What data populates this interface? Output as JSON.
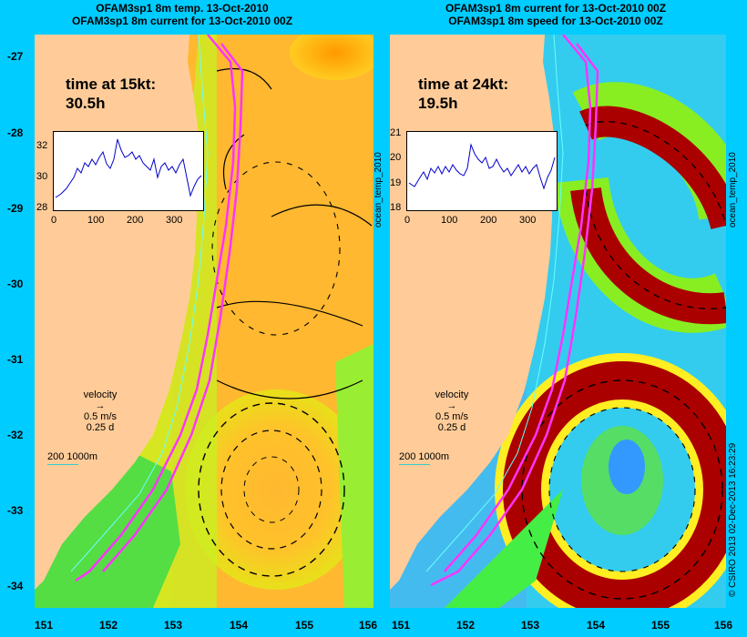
{
  "left_panel": {
    "title_line1": "OFAM3sp1 8m temp. 13-Oct-2010",
    "title_line2": "OFAM3sp1 8m current for 13-Oct-2010 00Z",
    "time_label": "time at 15kt:",
    "time_value": "30.5h",
    "inset": {
      "yticks": [
        "32",
        "30",
        "28"
      ],
      "xticks": [
        "0",
        "100",
        "200",
        "300"
      ]
    },
    "velocity": {
      "label": "velocity",
      "speed": "0.5 m/s",
      "duration": "0.25 d"
    },
    "depth_contours": "200  1000m",
    "side_label": "ocean_temp_2010"
  },
  "right_panel": {
    "title_line1": "OFAM3sp1 8m current for 13-Oct-2010 00Z",
    "title_line2": "OFAM3sp1 8m speed for 13-Oct-2010 00Z",
    "time_label": "time at 24kt:",
    "time_value": "19.5h",
    "inset": {
      "yticks": [
        "21",
        "20",
        "19",
        "18"
      ],
      "xticks": [
        "0",
        "100",
        "200",
        "300"
      ]
    },
    "velocity": {
      "label": "velocity",
      "speed": "0.5 m/s",
      "duration": "0.25 d"
    },
    "depth_contours": "200  1000m",
    "side_label": "ocean_temp_2010"
  },
  "axes": {
    "y_ticks": [
      "-27",
      "-28",
      "-29",
      "-30",
      "-31",
      "-32",
      "-33",
      "-34"
    ],
    "x_ticks": [
      "151",
      "152",
      "153",
      "154",
      "155",
      "156"
    ]
  },
  "footer": "© CSIRO 2013   02-Dec-2013 16:23:29",
  "colors": {
    "background": "#00ccff",
    "land": "#ffcc99",
    "route": "#ff33ff",
    "vectors": "#000000",
    "contour": "#66ffff"
  }
}
